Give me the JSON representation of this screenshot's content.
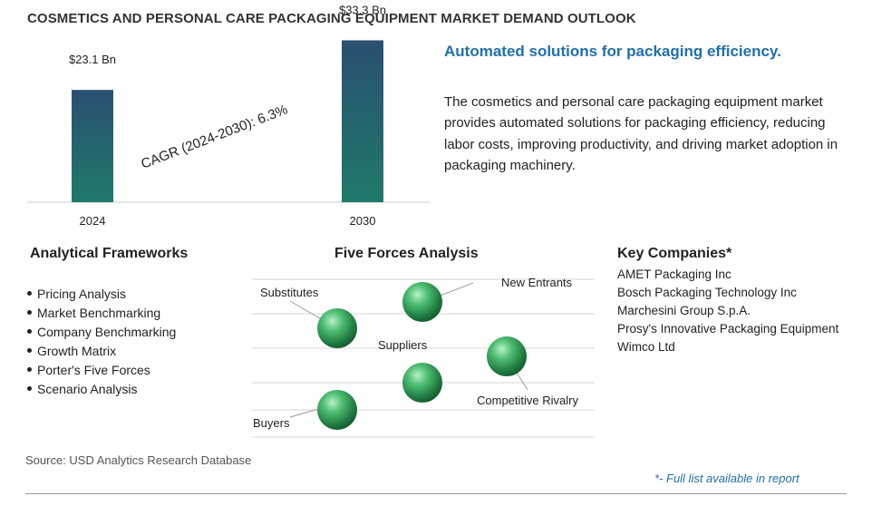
{
  "title": "COSMETICS AND PERSONAL CARE PACKAGING EQUIPMENT MARKET DEMAND OUTLOOK",
  "chart_data": {
    "type": "bar",
    "categories": [
      "2024",
      "2030"
    ],
    "values": [
      23.1,
      33.3
    ],
    "data_labels": [
      "$23.1 Bn",
      "$33.3 Bn"
    ],
    "annotation": "CAGR (2024-2030):  6.3%",
    "colors": {
      "bar_top": "#2a4f72",
      "bar_bottom": "#1f7a6a"
    },
    "ylim": [
      0,
      36
    ]
  },
  "subtitle": "Automated solutions for packaging efficiency.",
  "description": "The cosmetics and personal care packaging equipment market provides automated solutions for packaging efficiency, reducing labor costs, improving productivity, and driving market adoption in packaging machinery.",
  "frameworks": {
    "heading": "Analytical Frameworks",
    "items": [
      "Pricing Analysis",
      "Market Benchmarking",
      "Company Benchmarking",
      "Growth Matrix",
      "Porter's Five Forces",
      "Scenario Analysis"
    ]
  },
  "five_forces": {
    "heading": "Five Forces Analysis",
    "labels": [
      "Substitutes",
      "New Entrants",
      "Suppliers",
      "Competitive Rivalry",
      "Buyers"
    ]
  },
  "companies": {
    "heading": "Key Companies*",
    "items": [
      "AMET Packaging Inc",
      "Bosch Packaging Technology Inc",
      "Marchesini Group S.p.A.",
      "Prosy's Innovative Packaging Equipment",
      "Wimco Ltd"
    ]
  },
  "source": "Source: USD Analytics Research Database",
  "footnote": "*- Full list available in report"
}
